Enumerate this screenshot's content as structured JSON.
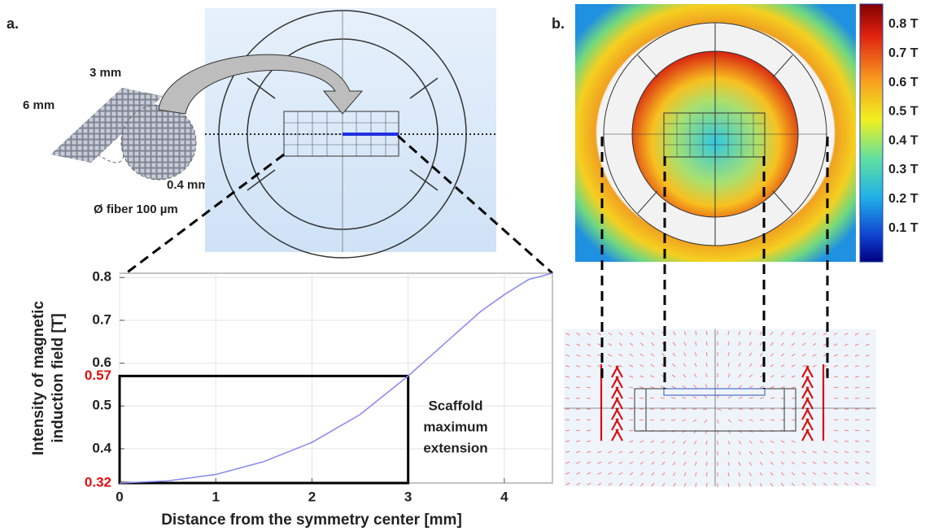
{
  "labels": {
    "a": "a.",
    "b": "b.",
    "length": "6 mm",
    "width": "3 mm",
    "spacing": "0.4 mm",
    "fiber": "Ø fiber 100 µm"
  },
  "colorbar": {
    "ticks": [
      "0.8 T",
      "0.7 T",
      "0.6 T",
      "0.5 T",
      "0.4 T",
      "0.3 T",
      "0.2 T",
      "0.1 T"
    ]
  },
  "chart_data": {
    "type": "line",
    "xlabel": "Distance from the symmetry center [mm]",
    "ylabel": [
      "Intensity of magnetic",
      "induction field [T]"
    ],
    "x": [
      0,
      0.5,
      1,
      1.5,
      2,
      2.5,
      3,
      3.25,
      3.5,
      3.75,
      4,
      4.25,
      4.5
    ],
    "series": [
      {
        "color": "#8c8cf0",
        "values": [
          0.32,
          0.325,
          0.34,
          0.37,
          0.415,
          0.48,
          0.57,
          0.62,
          0.67,
          0.72,
          0.76,
          0.795,
          0.81
        ]
      }
    ],
    "xlim": [
      0,
      4.5
    ],
    "ylim": [
      0.32,
      0.81
    ],
    "xticks": [
      0,
      1,
      2,
      3,
      4
    ],
    "yticks": [
      0.4,
      0.5,
      0.6,
      0.7,
      0.8
    ],
    "grid": true,
    "marked_levels": {
      "values": [
        0.32,
        0.57
      ],
      "color": "#e01010"
    },
    "annotation": {
      "text": [
        "Scaffold",
        "maximum",
        "extension"
      ],
      "box_x": 3
    }
  }
}
